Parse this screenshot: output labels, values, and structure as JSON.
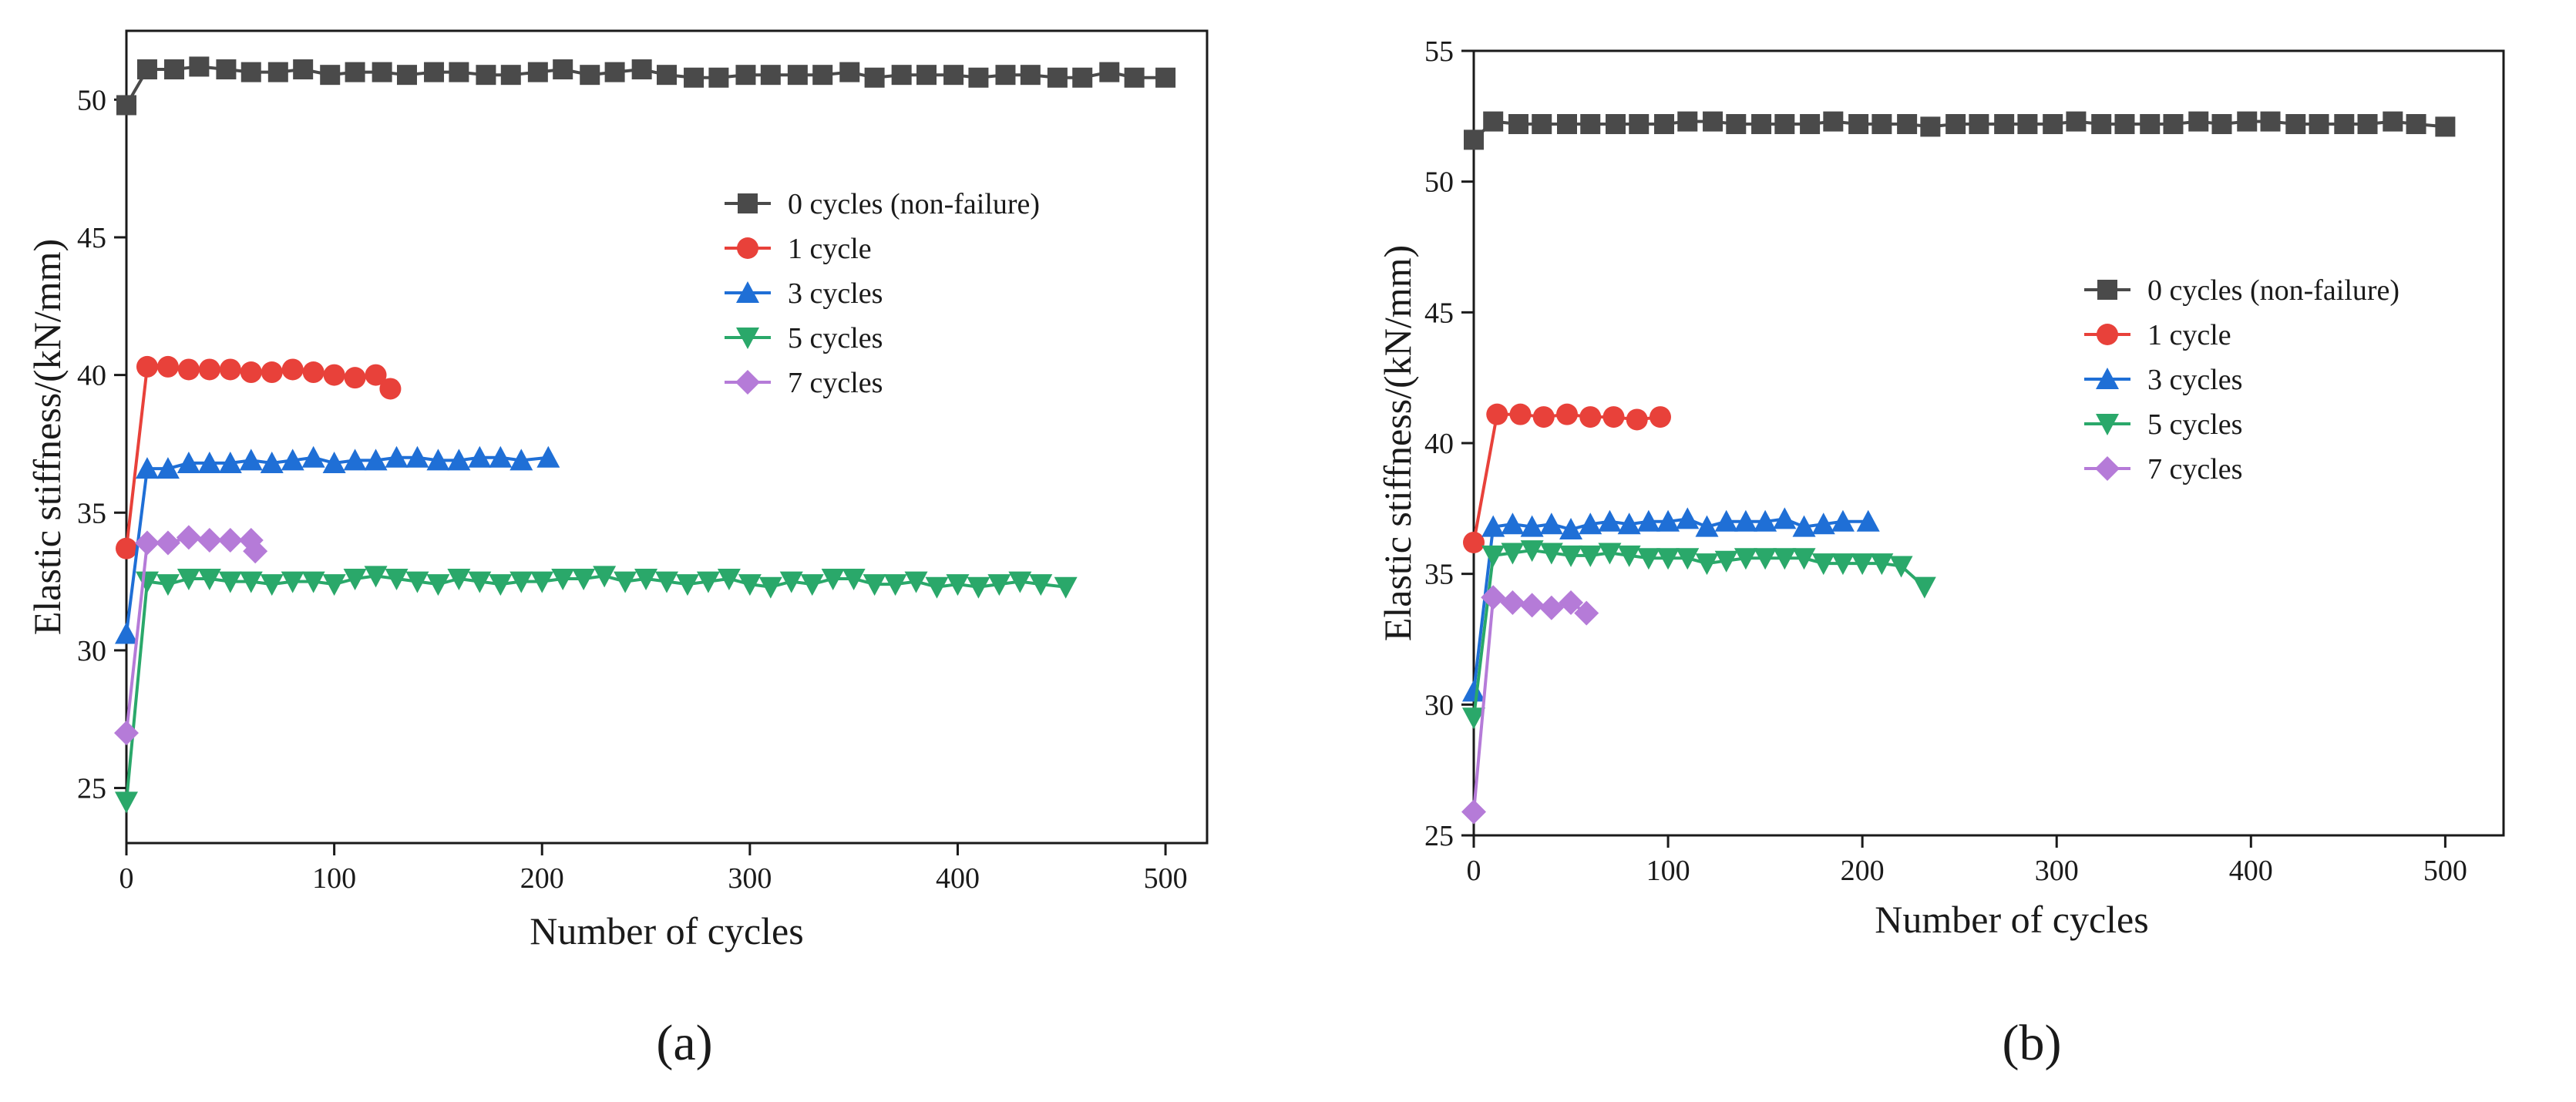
{
  "colors": {
    "0 cycles (non-failure)": "#4a4a4a",
    "1 cycle": "#e8413a",
    "3 cycles": "#1f6fd6",
    "5 cycles": "#2aa86a",
    "7 cycles": "#b57bd8"
  },
  "markers": {
    "0 cycles (non-failure)": "square",
    "1 cycle": "circle",
    "3 cycles": "triangle-up",
    "5 cycles": "triangle-down",
    "7 cycles": "diamond"
  },
  "chart_data": [
    {
      "panel": "a",
      "panel_label": "(a)",
      "type": "line",
      "xlabel": "Number of cycles",
      "ylabel": "Elastic stiffness/(kN/mm)",
      "xlim": [
        0,
        520
      ],
      "ylim": [
        23,
        52.5
      ],
      "xticks": [
        0,
        100,
        200,
        300,
        400,
        500
      ],
      "yticks": [
        25,
        30,
        35,
        40,
        45,
        50
      ],
      "legend": [
        "0 cycles (non-failure)",
        "1 cycle",
        "3 cycles",
        "5 cycles",
        "7 cycles"
      ],
      "legend_position": "upper-right",
      "series": [
        {
          "name": "0 cycles (non-failure)",
          "x": [
            0,
            10,
            23,
            35,
            48,
            60,
            73,
            85,
            98,
            110,
            123,
            135,
            148,
            160,
            173,
            185,
            198,
            210,
            223,
            235,
            248,
            260,
            273,
            285,
            298,
            310,
            323,
            335,
            348,
            360,
            373,
            385,
            398,
            410,
            423,
            435,
            448,
            460,
            473,
            485,
            500
          ],
          "y": [
            49.8,
            51.1,
            51.1,
            51.2,
            51.1,
            51.0,
            51.0,
            51.1,
            50.9,
            51.0,
            51.0,
            50.9,
            51.0,
            51.0,
            50.9,
            50.9,
            51.0,
            51.1,
            50.9,
            51.0,
            51.1,
            50.9,
            50.8,
            50.8,
            50.9,
            50.9,
            50.9,
            50.9,
            51.0,
            50.8,
            50.9,
            50.9,
            50.9,
            50.8,
            50.9,
            50.9,
            50.8,
            50.8,
            51.0,
            50.8,
            50.8
          ]
        },
        {
          "name": "1 cycle",
          "x": [
            0,
            10,
            20,
            30,
            40,
            50,
            60,
            70,
            80,
            90,
            100,
            110,
            120,
            127
          ],
          "y": [
            33.7,
            40.3,
            40.3,
            40.2,
            40.2,
            40.2,
            40.1,
            40.1,
            40.2,
            40.1,
            40.0,
            39.9,
            40.0,
            39.5
          ]
        },
        {
          "name": "3 cycles",
          "x": [
            0,
            10,
            20,
            30,
            40,
            50,
            60,
            70,
            80,
            90,
            100,
            110,
            120,
            130,
            140,
            150,
            160,
            170,
            180,
            190,
            203
          ],
          "y": [
            30.6,
            36.6,
            36.6,
            36.8,
            36.8,
            36.8,
            36.9,
            36.8,
            36.9,
            37.0,
            36.8,
            36.9,
            36.9,
            37.0,
            37.0,
            36.9,
            36.9,
            37.0,
            37.0,
            36.9,
            37.0
          ]
        },
        {
          "name": "5 cycles",
          "x": [
            0,
            10,
            20,
            30,
            40,
            50,
            60,
            70,
            80,
            90,
            100,
            110,
            120,
            130,
            140,
            150,
            160,
            170,
            180,
            190,
            200,
            210,
            220,
            230,
            240,
            250,
            260,
            270,
            280,
            290,
            300,
            310,
            320,
            330,
            340,
            350,
            360,
            370,
            380,
            390,
            400,
            410,
            420,
            430,
            440,
            452
          ],
          "y": [
            24.5,
            32.5,
            32.4,
            32.6,
            32.6,
            32.5,
            32.5,
            32.4,
            32.5,
            32.5,
            32.4,
            32.6,
            32.7,
            32.6,
            32.5,
            32.4,
            32.6,
            32.5,
            32.4,
            32.5,
            32.5,
            32.6,
            32.6,
            32.7,
            32.5,
            32.6,
            32.5,
            32.4,
            32.5,
            32.6,
            32.4,
            32.3,
            32.5,
            32.4,
            32.6,
            32.6,
            32.4,
            32.4,
            32.5,
            32.3,
            32.4,
            32.3,
            32.4,
            32.5,
            32.4,
            32.3
          ]
        },
        {
          "name": "7 cycles",
          "x": [
            0,
            10,
            20,
            30,
            40,
            50,
            60,
            62
          ],
          "y": [
            27.0,
            33.9,
            33.9,
            34.1,
            34.0,
            34.0,
            34.0,
            33.6
          ]
        }
      ]
    },
    {
      "panel": "b",
      "panel_label": "(b)",
      "type": "line",
      "xlabel": "Number of cycles",
      "ylabel": "Elastic stiffness/(kN/mm)",
      "xlim": [
        0,
        530
      ],
      "ylim": [
        25,
        55
      ],
      "xticks": [
        0,
        100,
        200,
        300,
        400,
        500
      ],
      "yticks": [
        25,
        30,
        35,
        40,
        45,
        50,
        55
      ],
      "legend": [
        "0 cycles (non-failure)",
        "1 cycle",
        "3 cycles",
        "5 cycles",
        "7 cycles"
      ],
      "legend_position": "center-right",
      "series": [
        {
          "name": "0 cycles (non-failure)",
          "x": [
            0,
            10,
            23,
            35,
            48,
            60,
            73,
            85,
            98,
            110,
            123,
            135,
            148,
            160,
            173,
            185,
            198,
            210,
            223,
            235,
            248,
            260,
            273,
            285,
            298,
            310,
            323,
            335,
            348,
            360,
            373,
            385,
            398,
            410,
            423,
            435,
            448,
            460,
            473,
            485,
            500
          ],
          "y": [
            51.6,
            52.3,
            52.2,
            52.2,
            52.2,
            52.2,
            52.2,
            52.2,
            52.2,
            52.3,
            52.3,
            52.2,
            52.2,
            52.2,
            52.2,
            52.3,
            52.2,
            52.2,
            52.2,
            52.1,
            52.2,
            52.2,
            52.2,
            52.2,
            52.2,
            52.3,
            52.2,
            52.2,
            52.2,
            52.2,
            52.3,
            52.2,
            52.3,
            52.3,
            52.2,
            52.2,
            52.2,
            52.2,
            52.3,
            52.2,
            52.1
          ]
        },
        {
          "name": "1 cycle",
          "x": [
            0,
            12,
            24,
            36,
            48,
            60,
            72,
            84,
            96
          ],
          "y": [
            36.2,
            41.1,
            41.1,
            41.0,
            41.1,
            41.0,
            41.0,
            40.9,
            41.0
          ]
        },
        {
          "name": "3 cycles",
          "x": [
            0,
            10,
            20,
            30,
            40,
            50,
            60,
            70,
            80,
            90,
            100,
            110,
            120,
            130,
            140,
            150,
            160,
            170,
            180,
            190,
            203
          ],
          "y": [
            30.5,
            36.8,
            36.9,
            36.8,
            36.9,
            36.7,
            36.9,
            37.0,
            36.9,
            37.0,
            37.0,
            37.1,
            36.8,
            37.0,
            37.0,
            37.0,
            37.1,
            36.8,
            36.9,
            37.0,
            37.0
          ]
        },
        {
          "name": "5 cycles",
          "x": [
            0,
            10,
            20,
            30,
            40,
            50,
            60,
            70,
            80,
            90,
            100,
            110,
            120,
            130,
            140,
            150,
            160,
            170,
            180,
            190,
            200,
            210,
            220,
            232
          ],
          "y": [
            29.5,
            35.7,
            35.8,
            35.9,
            35.8,
            35.7,
            35.7,
            35.8,
            35.7,
            35.6,
            35.6,
            35.6,
            35.4,
            35.5,
            35.6,
            35.6,
            35.6,
            35.6,
            35.4,
            35.4,
            35.4,
            35.4,
            35.3,
            34.5
          ]
        },
        {
          "name": "7 cycles",
          "x": [
            0,
            10,
            20,
            30,
            40,
            50,
            58
          ],
          "y": [
            25.9,
            34.1,
            33.9,
            33.8,
            33.7,
            33.9,
            33.5
          ]
        }
      ]
    }
  ]
}
